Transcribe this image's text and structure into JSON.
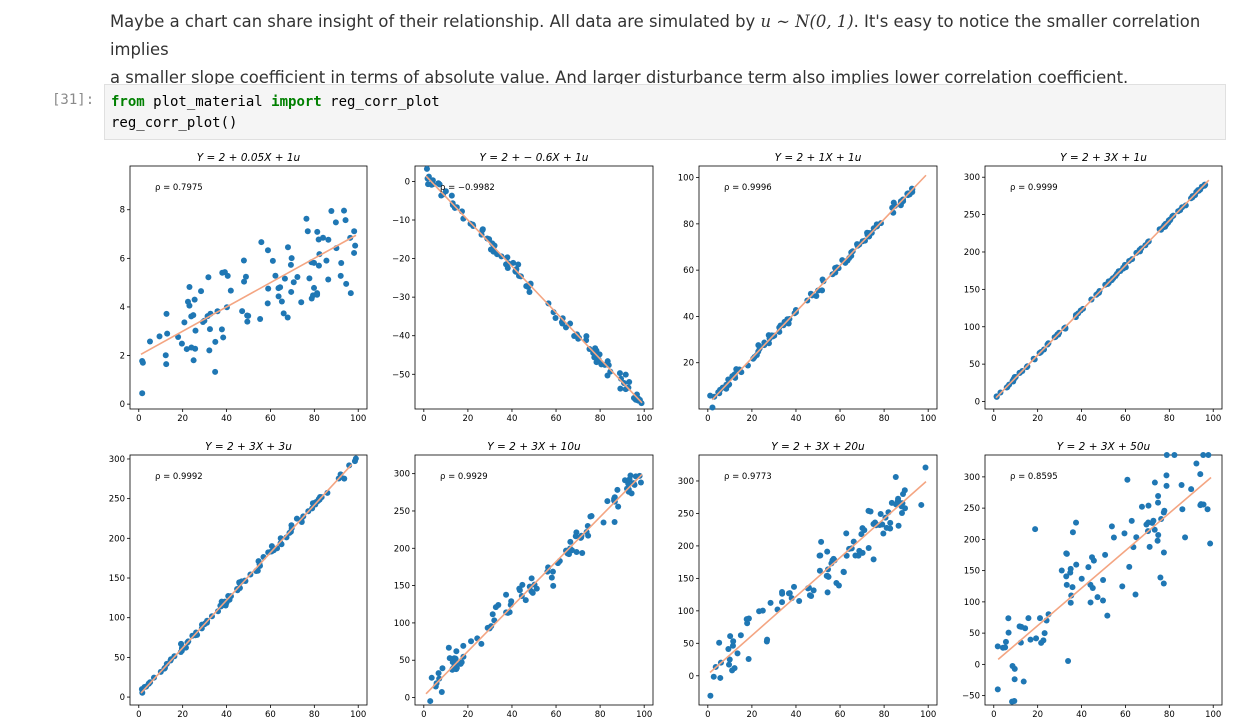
{
  "markdown": {
    "part1": "Maybe a chart can share insight of their relationship. All data are simulated by ",
    "math": "u ∼ N(0, 1)",
    "part2": ". It's easy to notice the smaller correlation implies",
    "line2": "a smaller slope coefficient in terms of absolute value. And larger disturbance term also implies lower correlation coefficient."
  },
  "cell": {
    "prompt": "[31]:",
    "line1_kw1": "from",
    "line1_mod": " plot_material ",
    "line1_kw2": "import",
    "line1_name": " reg_corr_plot",
    "line2": "reg_corr_plot()"
  },
  "colors": {
    "points": "#1f77b4",
    "line": "#f4a582"
  },
  "chart_data": [
    {
      "type": "scatter",
      "title": "Y = 2 + 0.05X + 1u",
      "rho_label": "ρ = 0.7975",
      "xticks": [
        0,
        20,
        40,
        60,
        80,
        100
      ],
      "yticks": [
        0,
        2,
        4,
        6,
        8
      ],
      "xlim": [
        -4,
        104
      ],
      "ylim": [
        -0.2,
        9.8
      ],
      "intercept": 2,
      "slope": 0.05,
      "noise": 1,
      "line": [
        [
          1,
          2.05
        ],
        [
          99,
          6.95
        ]
      ]
    },
    {
      "type": "scatter",
      "title": "Y = 2 + − 0.6X + 1u",
      "rho_label": "ρ = −0.9982",
      "xticks": [
        0,
        20,
        40,
        60,
        80,
        100
      ],
      "yticks": [
        0,
        -10,
        -20,
        -30,
        -40,
        -50
      ],
      "xlim": [
        -4,
        104
      ],
      "ylim": [
        -59,
        4
      ],
      "intercept": 2,
      "slope": -0.6,
      "noise": 1,
      "line": [
        [
          1,
          1.4
        ],
        [
          99,
          -57.4
        ]
      ]
    },
    {
      "type": "scatter",
      "title": "Y = 2 + 1X + 1u",
      "rho_label": "ρ = 0.9996",
      "xticks": [
        0,
        20,
        40,
        60,
        80,
        100
      ],
      "yticks": [
        20,
        40,
        60,
        80,
        100
      ],
      "xlim": [
        -4,
        104
      ],
      "ylim": [
        0,
        105
      ],
      "intercept": 2,
      "slope": 1,
      "noise": 1,
      "line": [
        [
          2,
          4
        ],
        [
          99,
          101
        ]
      ]
    },
    {
      "type": "scatter",
      "title": "Y = 2 + 3X + 1u",
      "rho_label": "ρ = 0.9999",
      "xticks": [
        0,
        20,
        40,
        60,
        80,
        100
      ],
      "yticks": [
        0,
        50,
        100,
        150,
        200,
        250,
        300
      ],
      "xlim": [
        -4,
        104
      ],
      "ylim": [
        -10,
        315
      ],
      "intercept": 2,
      "slope": 3,
      "noise": 1,
      "line": [
        [
          1,
          5
        ],
        [
          98,
          296
        ]
      ]
    },
    {
      "type": "scatter",
      "title": "Y = 2 + 3X + 3u",
      "rho_label": "ρ = 0.9992",
      "xticks": [
        0,
        20,
        40,
        60,
        80,
        100
      ],
      "yticks": [
        0,
        50,
        100,
        150,
        200,
        250,
        300
      ],
      "xlim": [
        -4,
        104
      ],
      "ylim": [
        -10,
        305
      ],
      "intercept": 2,
      "slope": 3,
      "noise": 3,
      "line": [
        [
          1,
          5
        ],
        [
          97,
          293
        ]
      ]
    },
    {
      "type": "scatter",
      "title": "Y = 2 + 3X + 10u",
      "rho_label": "ρ = 0.9929",
      "xticks": [
        0,
        20,
        40,
        60,
        80,
        100
      ],
      "yticks": [
        0,
        50,
        100,
        150,
        200,
        250,
        300
      ],
      "xlim": [
        -4,
        104
      ],
      "ylim": [
        -10,
        325
      ],
      "intercept": 2,
      "slope": 3,
      "noise": 10,
      "line": [
        [
          1,
          5
        ],
        [
          99,
          299
        ]
      ]
    },
    {
      "type": "scatter",
      "title": "Y = 2 + 3X + 20u",
      "rho_label": "ρ = 0.9773",
      "xticks": [
        0,
        20,
        40,
        60,
        80,
        100
      ],
      "yticks": [
        0,
        50,
        100,
        150,
        200,
        250,
        300
      ],
      "xlim": [
        -4,
        104
      ],
      "ylim": [
        -45,
        340
      ],
      "intercept": 2,
      "slope": 3,
      "noise": 20,
      "line": [
        [
          1,
          5
        ],
        [
          99,
          299
        ]
      ]
    },
    {
      "type": "scatter",
      "title": "Y = 2 + 3X + 50u",
      "rho_label": "ρ = 0.8595",
      "xticks": [
        0,
        20,
        40,
        60,
        80,
        100
      ],
      "yticks": [
        -50,
        0,
        50,
        100,
        150,
        200,
        250,
        300
      ],
      "xlim": [
        -4,
        104
      ],
      "ylim": [
        -65,
        335
      ],
      "intercept": 2,
      "slope": 3,
      "noise": 50,
      "line": [
        [
          2,
          8
        ],
        [
          99,
          299
        ]
      ]
    }
  ]
}
